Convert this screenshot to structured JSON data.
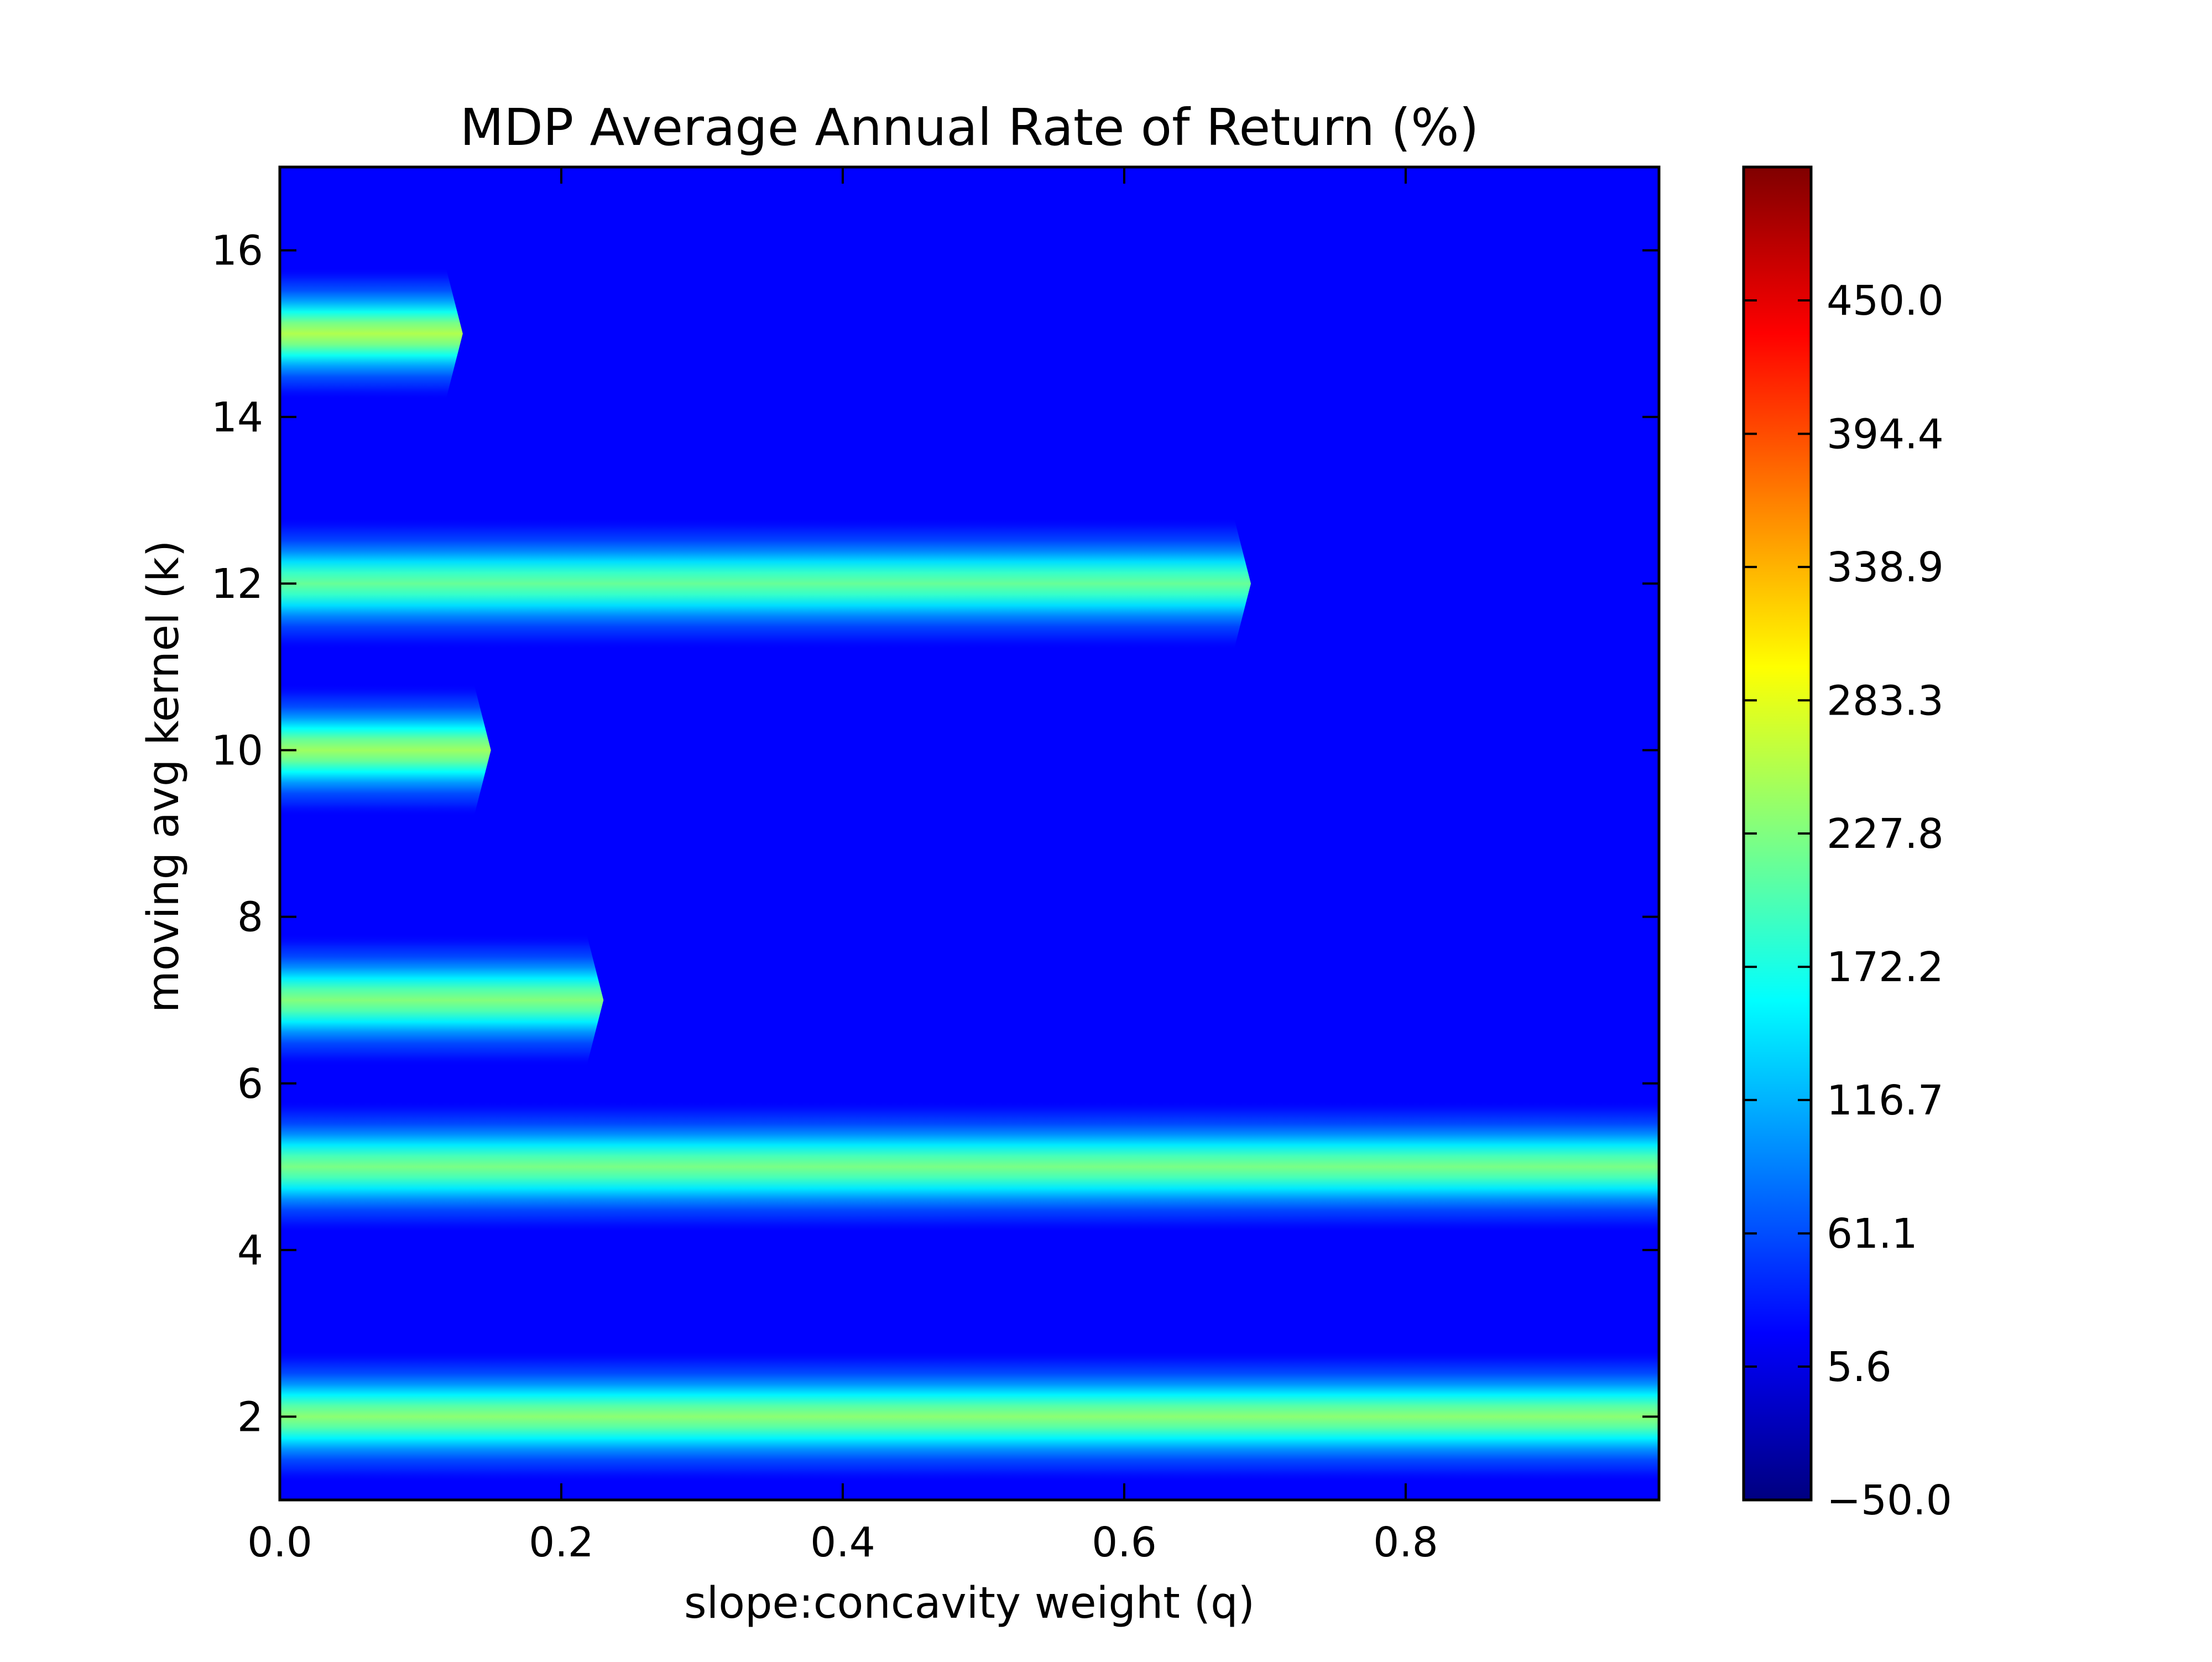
{
  "chart_data": {
    "type": "heatmap",
    "title": "MDP Average Annual Rate of Return (%)",
    "xlabel": "slope:concavity weight (q)",
    "ylabel": "moving avg kernel (k)",
    "xlim": [
      0.0,
      0.98
    ],
    "ylim": [
      1,
      17
    ],
    "x_ticks": [
      0.0,
      0.2,
      0.4,
      0.6,
      0.8
    ],
    "x_tick_labels": [
      "0.0",
      "0.2",
      "0.4",
      "0.6",
      "0.8"
    ],
    "y_ticks": [
      2,
      4,
      6,
      8,
      10,
      12,
      14,
      16
    ],
    "y_tick_labels": [
      "2",
      "4",
      "6",
      "8",
      "10",
      "12",
      "14",
      "16"
    ],
    "colormap": "jet",
    "value_range": [
      -50.0,
      505.6
    ],
    "colorbar_ticks": [
      -50.0,
      5.6,
      61.1,
      116.7,
      172.2,
      227.8,
      283.3,
      338.9,
      394.4,
      450.0
    ],
    "colorbar_tick_labels": [
      "−50.0",
      "5.6",
      "61.1",
      "116.7",
      "172.2",
      "227.8",
      "283.3",
      "338.9",
      "394.4",
      "450.0"
    ],
    "background_value": 20,
    "bands": [
      {
        "k": 2,
        "q_start": 0.0,
        "q_end": 0.98,
        "peak": 235
      },
      {
        "k": 5,
        "q_start": 0.0,
        "q_end": 0.98,
        "peak": 225
      },
      {
        "k": 7,
        "q_start": 0.0,
        "q_end": 0.23,
        "peak": 230
      },
      {
        "k": 10,
        "q_start": 0.0,
        "q_end": 0.15,
        "peak": 245
      },
      {
        "k": 12,
        "q_start": 0.0,
        "q_end": 0.69,
        "peak": 215
      },
      {
        "k": 15,
        "q_start": 0.0,
        "q_end": 0.13,
        "peak": 255
      }
    ]
  }
}
